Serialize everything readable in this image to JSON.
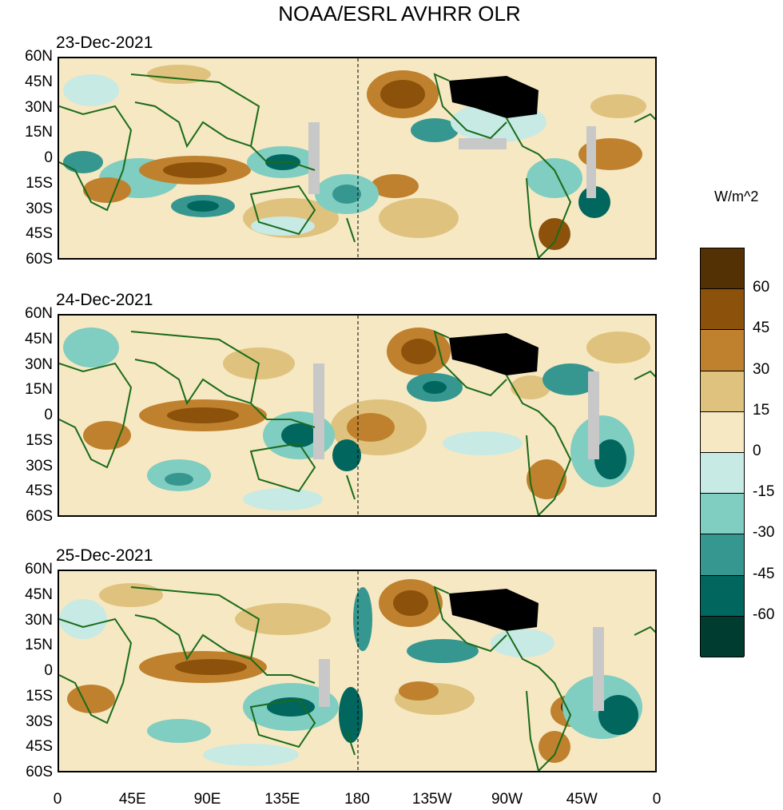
{
  "title": "NOAA/ESRL AVHRR OLR",
  "panels": [
    {
      "date": "23-Dec-2021"
    },
    {
      "date": "24-Dec-2021"
    },
    {
      "date": "25-Dec-2021"
    }
  ],
  "lat_labels": [
    "60N",
    "45N",
    "30N",
    "15N",
    "0",
    "15S",
    "30S",
    "45S",
    "60S"
  ],
  "lon_labels": [
    "0",
    "45E",
    "90E",
    "135E",
    "180",
    "135W",
    "90W",
    "45W",
    "0"
  ],
  "colorbar": {
    "units": "W/m^2",
    "labels": [
      "60",
      "45",
      "30",
      "15",
      "0",
      "-15",
      "-30",
      "-45",
      "-60"
    ],
    "colors": [
      "#543005",
      "#8c510a",
      "#bf812d",
      "#dfc27d",
      "#f6e8c3",
      "#c7eae5",
      "#80cdc1",
      "#35978f",
      "#01665e",
      "#003c30"
    ]
  },
  "colors": {
    "land_outline": "#1a6b1a",
    "missing": "#c8c8c8",
    "usa_fill": "#000000"
  }
}
